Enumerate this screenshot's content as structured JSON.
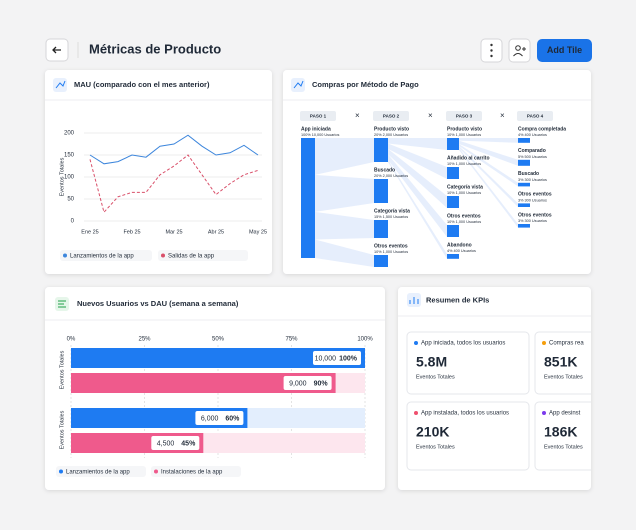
{
  "header": {
    "title": "Métricas de Producto",
    "button": "Add Tile"
  },
  "mau": {
    "type": "line",
    "title": "MAU (comparado con el mes anterior)",
    "y_label": "Eventos Totales",
    "categories": [
      "Ene 25",
      null,
      null,
      "Feb 25",
      null,
      null,
      "Mar 25",
      null,
      null,
      "Abr 25",
      null,
      null,
      "May 25"
    ],
    "ylim": [
      0,
      200
    ],
    "yticks": [
      0,
      50,
      100,
      150,
      200
    ],
    "grid": true,
    "series": [
      {
        "name": "Lanzamientos de la app",
        "color": "#3d86dc",
        "dash": false,
        "values": [
          150,
          130,
          135,
          150,
          145,
          170,
          175,
          195,
          170,
          150,
          155,
          172,
          150
        ]
      },
      {
        "name": "Salidas de la app",
        "color": "#d9506a",
        "dash": true,
        "values": [
          140,
          20,
          55,
          65,
          65,
          105,
          125,
          150,
          105,
          60,
          85,
          105,
          115
        ]
      }
    ]
  },
  "funnel": {
    "title": "Compras por Método de Pago",
    "steps": [
      {
        "label": "PASO 1",
        "nodes": [
          {
            "label": "App iniciada",
            "value": 10000,
            "value_label": "100%  10,000 Usuarios"
          }
        ]
      },
      {
        "label": "PASO 2",
        "nodes": [
          {
            "label": "Producto visto",
            "value": 2000,
            "value_label": "20%  2,000 Usuarios"
          },
          {
            "label": "Buscado",
            "value": 2000,
            "value_label": "20%  2,000 Usuarios"
          },
          {
            "label": "Categoría vista",
            "value": 1500,
            "value_label": "15%  1,500 Usuarios"
          },
          {
            "label": "Otros eventos",
            "value": 1000,
            "value_label": "10%  1,000 Usuarios"
          }
        ]
      },
      {
        "label": "PASO 3",
        "nodes": [
          {
            "label": "Producto visto",
            "value": 1000,
            "value_label": "10%  1,000 Usuarios"
          },
          {
            "label": "Añadido al carrito",
            "value": 1000,
            "value_label": "10%  1,000 Usuarios"
          },
          {
            "label": "Categoría vista",
            "value": 1000,
            "value_label": "10%  1,000 Usuarios"
          },
          {
            "label": "Otros eventos",
            "value": 1000,
            "value_label": "10%  1,000 Usuarios"
          },
          {
            "label": "Abandono",
            "value": 400,
            "value_label": "4%  400 Usuarios"
          }
        ]
      },
      {
        "label": "PASO 4",
        "nodes": [
          {
            "label": "Compra completada",
            "value": 400,
            "value_label": "4%  400 Usuarios"
          },
          {
            "label": "Comparado",
            "value": 500,
            "value_label": "5%  500 Usuarios"
          },
          {
            "label": "Buscado",
            "value": 300,
            "value_label": "3%  300 Usuarios"
          },
          {
            "label": "Otros eventos",
            "value": 300,
            "value_label": "3%  300 Usuarios"
          },
          {
            "label": "Otros eventos",
            "value": 300,
            "value_label": "3%  300 Usuarios"
          }
        ]
      }
    ]
  },
  "dau": {
    "type": "bar",
    "orientation": "horizontal",
    "title": "Nuevos Usuarios vs DAU (semana a semana)",
    "y_label": "Eventos Totales",
    "categories": [
      null,
      null
    ],
    "xlim": [
      0,
      100
    ],
    "xticks": [
      {
        "value": 0,
        "label": "0%"
      },
      {
        "value": 25,
        "label": "25%"
      },
      {
        "value": 50,
        "label": "50%"
      },
      {
        "value": 75,
        "label": "75%"
      },
      {
        "value": 100,
        "label": "100%"
      }
    ],
    "series": [
      {
        "name": "Lanzamientos de la app",
        "color": "#1e7bf2",
        "background": "#e3eefd",
        "values": [
          100,
          60
        ],
        "value_labels": [
          "100%",
          "60%"
        ],
        "count_labels": [
          "10,000",
          "6,000"
        ]
      },
      {
        "name": "Instalaciones de la app",
        "color": "#ef5a8c",
        "background": "#fde6ee",
        "values": [
          90,
          45
        ],
        "value_labels": [
          "90%",
          "45%"
        ],
        "count_labels": [
          "9,000",
          "4,500"
        ]
      }
    ]
  },
  "kpis": {
    "title": "Resumen de KPIs",
    "cards": [
      {
        "label": "App iniciada, todos los usuarios",
        "value": "5.8M",
        "sub": "Eventos Totales",
        "color": "#1e7bf2"
      },
      {
        "label": "Compras rea",
        "value": "851K",
        "sub": "Eventos Totales",
        "color": "#f59e0b"
      },
      {
        "label": "App instalada, todos los usuarios",
        "value": "210K",
        "sub": "Eventos Totales",
        "color": "#ef4f6e"
      },
      {
        "label": "App desinst",
        "value": "186K",
        "sub": "Eventos Totales",
        "color": "#7c3aed"
      }
    ]
  }
}
